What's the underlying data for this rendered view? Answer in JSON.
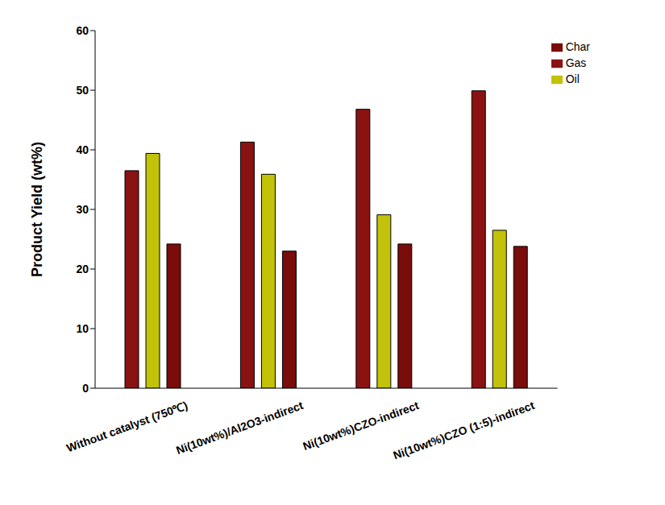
{
  "chart_data": {
    "type": "bar",
    "y_label": "Product Yield (wt%)",
    "categories": [
      "Without catalyst (750℃)",
      "Ni(10wt%)/Al2O3-indirect",
      "Ni(10wt%)CZO-indirect",
      "Ni(10wt%)CZO (1:5)-indirect"
    ],
    "series": [
      {
        "name": "Gas",
        "color": "#8b1212",
        "values": [
          36.5,
          41.3,
          46.8,
          49.9
        ]
      },
      {
        "name": "Oil",
        "color": "#c2c20a",
        "values": [
          39.4,
          35.9,
          29.1,
          26.5
        ]
      },
      {
        "name": "Char",
        "color": "#7a0c0c",
        "values": [
          24.2,
          23.0,
          24.2,
          23.8
        ]
      }
    ],
    "ylim": [
      0,
      60
    ],
    "yticks": [
      0,
      10,
      20,
      30,
      40,
      50,
      60
    ],
    "grid": false,
    "legend": "upper right"
  }
}
